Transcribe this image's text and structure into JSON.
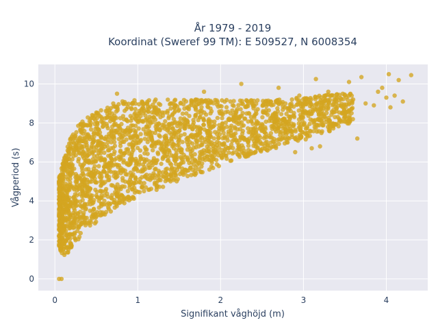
{
  "chart_data": {
    "type": "scatter",
    "title": "År 1979 - 2019",
    "subtitle": "Koordinat (Sweref 99 TM): E 509527, N 6008354",
    "xlabel": "Signifikant våghöjd (m)",
    "ylabel": "Vågperiod (s)",
    "xlim": [
      -0.2,
      4.5
    ],
    "ylim": [
      -0.6,
      11
    ],
    "xticks": [
      0,
      1,
      2,
      3,
      4
    ],
    "yticks": [
      0,
      2,
      4,
      6,
      8,
      10
    ],
    "grid": true,
    "legend": "none",
    "marker_color": "#d4a520",
    "plot_background": "#e8e8f0",
    "grid_color": "#ffffff",
    "envelope": {
      "x": [
        0.05,
        0.1,
        0.15,
        0.2,
        0.3,
        0.4,
        0.5,
        0.6,
        0.7,
        0.8,
        1.0,
        1.2,
        1.4,
        1.6,
        1.8,
        2.0,
        2.2,
        2.4,
        2.6,
        2.8,
        3.0,
        3.2,
        3.4,
        3.6
      ],
      "y_min": [
        1.6,
        1.2,
        1.3,
        1.6,
        2.1,
        2.6,
        2.9,
        3.2,
        3.5,
        3.8,
        4.2,
        4.5,
        4.9,
        5.2,
        5.5,
        5.8,
        6.1,
        6.4,
        6.6,
        6.9,
        7.1,
        7.4,
        7.7,
        8.0
      ],
      "y_max": [
        5.2,
        6.0,
        6.8,
        7.4,
        8.0,
        8.3,
        8.6,
        8.8,
        9.0,
        9.1,
        9.2,
        9.2,
        9.2,
        9.2,
        9.2,
        9.2,
        9.2,
        9.2,
        9.2,
        9.3,
        9.3,
        9.4,
        9.5,
        9.5
      ]
    },
    "outliers": [
      {
        "x": 0.05,
        "y": 0.0
      },
      {
        "x": 0.08,
        "y": 0.0
      },
      {
        "x": 1.8,
        "y": 9.6
      },
      {
        "x": 2.25,
        "y": 10.0
      },
      {
        "x": 3.55,
        "y": 10.1
      },
      {
        "x": 3.7,
        "y": 10.35
      },
      {
        "x": 4.03,
        "y": 10.5
      },
      {
        "x": 4.3,
        "y": 10.45
      },
      {
        "x": 4.15,
        "y": 10.2
      },
      {
        "x": 3.95,
        "y": 9.8
      },
      {
        "x": 4.1,
        "y": 9.4
      },
      {
        "x": 4.2,
        "y": 9.1
      },
      {
        "x": 4.0,
        "y": 9.3
      },
      {
        "x": 3.85,
        "y": 8.9
      },
      {
        "x": 3.65,
        "y": 7.2
      },
      {
        "x": 3.15,
        "y": 10.25
      },
      {
        "x": 2.7,
        "y": 9.8
      },
      {
        "x": 2.95,
        "y": 9.4
      },
      {
        "x": 3.3,
        "y": 9.6
      },
      {
        "x": 3.6,
        "y": 9.2
      },
      {
        "x": 3.75,
        "y": 9.0
      },
      {
        "x": 3.9,
        "y": 9.6
      },
      {
        "x": 4.05,
        "y": 8.8
      },
      {
        "x": 0.75,
        "y": 9.5
      },
      {
        "x": 0.45,
        "y": 8.4
      },
      {
        "x": 0.2,
        "y": 7.2
      },
      {
        "x": 0.15,
        "y": 5.9
      },
      {
        "x": 3.1,
        "y": 6.7
      },
      {
        "x": 3.2,
        "y": 6.8
      },
      {
        "x": 2.9,
        "y": 6.5
      },
      {
        "x": 3.5,
        "y": 8.3
      },
      {
        "x": 3.4,
        "y": 8.6
      }
    ]
  }
}
